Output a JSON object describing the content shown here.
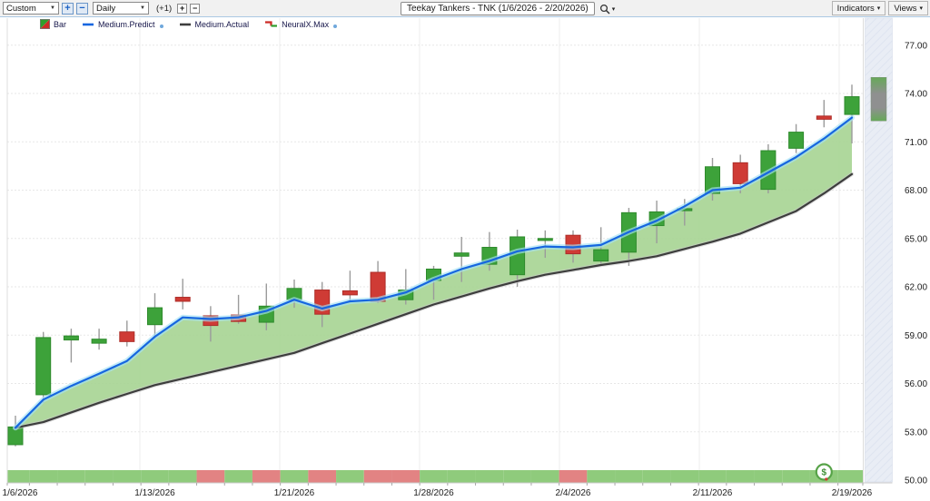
{
  "toolbar": {
    "layout_select": "Custom",
    "period_select": "Daily",
    "zoom_in_label": "+",
    "zoom_out_label": "−",
    "bar_offset_label": "(+1)",
    "step_plus_label": "+",
    "step_minus_label": "−",
    "chart_title": "Teekay Tankers - TNK (1/6/2026 - 2/20/2026)",
    "indicators_button": "Indicators",
    "views_button": "Views",
    "dropdown_caret": "▼",
    "button_caret": "▾"
  },
  "legend": {
    "items": [
      {
        "label": "Bar",
        "icon": "candlestick-legend-icon"
      },
      {
        "label": "Medium.Predict",
        "icon": "blue-line-icon",
        "has_dot": true
      },
      {
        "label": "Medium.Actual",
        "icon": "dark-line-icon",
        "has_dot": false
      },
      {
        "label": "NeuralX.Max",
        "icon": "red-green-step-icon",
        "has_dot": true
      }
    ]
  },
  "chart_data": {
    "type": "candlestick",
    "title": "Teekay Tankers - TNK",
    "date_range": "1/6/2026 - 2/20/2026",
    "y_axis": {
      "min": 50,
      "max": 77.5,
      "ticks": [
        50,
        53,
        56,
        59,
        62,
        65,
        68,
        71,
        74,
        77
      ],
      "tick_labels": [
        "50.00",
        "53.00",
        "56.00",
        "59.00",
        "62.00",
        "65.00",
        "68.00",
        "71.00",
        "74.00",
        "77.00"
      ]
    },
    "x_axis": {
      "tick_labels": [
        "1/6/2026",
        "1/13/2026",
        "1/21/2026",
        "1/28/2026",
        "2/4/2026",
        "2/11/2026",
        "2/19/2026"
      ],
      "tick_candle_indices": [
        0,
        5,
        10,
        15,
        20,
        25,
        30
      ]
    },
    "dates": [
      "1/6/2026",
      "1/7/2026",
      "1/8/2026",
      "1/9/2026",
      "1/12/2026",
      "1/13/2026",
      "1/14/2026",
      "1/15/2026",
      "1/16/2026",
      "1/20/2026",
      "1/21/2026",
      "1/22/2026",
      "1/23/2026",
      "1/26/2026",
      "1/27/2026",
      "1/28/2026",
      "1/29/2026",
      "1/30/2026",
      "2/2/2026",
      "2/3/2026",
      "2/4/2026",
      "2/5/2026",
      "2/6/2026",
      "2/9/2026",
      "2/10/2026",
      "2/11/2026",
      "2/12/2026",
      "2/13/2026",
      "2/17/2026",
      "2/18/2026",
      "2/19/2026"
    ],
    "candles": [
      {
        "o": 52.2,
        "h": 54.0,
        "l": 52.1,
        "c": 53.3
      },
      {
        "o": 55.3,
        "h": 59.2,
        "l": 54.8,
        "c": 58.85
      },
      {
        "o": 58.7,
        "h": 59.4,
        "l": 57.3,
        "c": 58.95
      },
      {
        "o": 58.5,
        "h": 59.4,
        "l": 58.1,
        "c": 58.75
      },
      {
        "o": 59.2,
        "h": 59.9,
        "l": 58.3,
        "c": 58.6
      },
      {
        "o": 59.65,
        "h": 61.6,
        "l": 58.8,
        "c": 60.7
      },
      {
        "o": 61.35,
        "h": 62.5,
        "l": 60.6,
        "c": 61.1
      },
      {
        "o": 60.2,
        "h": 60.8,
        "l": 58.6,
        "c": 59.6
      },
      {
        "o": 60.25,
        "h": 61.5,
        "l": 59.7,
        "c": 59.85
      },
      {
        "o": 59.8,
        "h": 62.2,
        "l": 59.3,
        "c": 60.8
      },
      {
        "o": 61.2,
        "h": 62.45,
        "l": 60.7,
        "c": 61.9
      },
      {
        "o": 61.8,
        "h": 62.3,
        "l": 59.5,
        "c": 60.3
      },
      {
        "o": 61.75,
        "h": 63.0,
        "l": 61.1,
        "c": 61.5
      },
      {
        "o": 62.9,
        "h": 63.6,
        "l": 61.0,
        "c": 61.1
      },
      {
        "o": 61.2,
        "h": 63.1,
        "l": 60.9,
        "c": 61.8
      },
      {
        "o": 62.4,
        "h": 63.3,
        "l": 61.2,
        "c": 63.1
      },
      {
        "o": 63.9,
        "h": 65.1,
        "l": 62.3,
        "c": 64.1
      },
      {
        "o": 63.4,
        "h": 65.4,
        "l": 63.0,
        "c": 64.45
      },
      {
        "o": 62.75,
        "h": 65.55,
        "l": 62.0,
        "c": 65.1
      },
      {
        "o": 64.9,
        "h": 65.5,
        "l": 63.8,
        "c": 65.0
      },
      {
        "o": 65.2,
        "h": 65.5,
        "l": 63.5,
        "c": 64.05
      },
      {
        "o": 63.6,
        "h": 65.7,
        "l": 63.4,
        "c": 64.3
      },
      {
        "o": 64.15,
        "h": 66.9,
        "l": 63.3,
        "c": 66.6
      },
      {
        "o": 65.8,
        "h": 67.35,
        "l": 64.7,
        "c": 66.65
      },
      {
        "o": 66.8,
        "h": 67.45,
        "l": 65.8,
        "c": 66.85
      },
      {
        "o": 67.8,
        "h": 70.0,
        "l": 67.35,
        "c": 69.45
      },
      {
        "o": 69.7,
        "h": 70.2,
        "l": 67.8,
        "c": 68.4
      },
      {
        "o": 68.05,
        "h": 70.85,
        "l": 67.8,
        "c": 70.45
      },
      {
        "o": 70.6,
        "h": 72.1,
        "l": 70.3,
        "c": 71.6
      },
      {
        "o": 72.6,
        "h": 73.6,
        "l": 71.9,
        "c": 72.4
      },
      {
        "o": 72.7,
        "h": 74.55,
        "l": 70.9,
        "c": 73.8
      }
    ],
    "series": [
      {
        "name": "Medium.Predict",
        "values": [
          53.25,
          55.0,
          55.85,
          56.6,
          57.4,
          58.9,
          60.1,
          60.0,
          60.1,
          60.5,
          61.2,
          60.65,
          61.1,
          61.2,
          61.65,
          62.45,
          63.1,
          63.6,
          64.2,
          64.5,
          64.45,
          64.6,
          65.4,
          66.1,
          67.0,
          68.0,
          68.15,
          69.1,
          70.05,
          71.2,
          72.5
        ]
      },
      {
        "name": "Medium.Actual",
        "values": [
          53.25,
          53.6,
          54.2,
          54.8,
          55.35,
          55.9,
          56.3,
          56.7,
          57.1,
          57.5,
          57.9,
          58.5,
          59.1,
          59.7,
          60.3,
          60.9,
          61.4,
          61.9,
          62.35,
          62.75,
          63.05,
          63.35,
          63.6,
          63.9,
          64.35,
          64.8,
          65.3,
          66.0,
          66.7,
          67.8,
          69.0
        ]
      }
    ],
    "neuralx_ribbon": {
      "name": "NeuralX.Max",
      "states": [
        "up",
        "up",
        "up",
        "up",
        "up",
        "up",
        "up",
        "down",
        "up",
        "down",
        "up",
        "down",
        "up",
        "down",
        "down",
        "up",
        "up",
        "up",
        "up",
        "up",
        "down",
        "up",
        "up",
        "up",
        "up",
        "up",
        "up",
        "up",
        "up",
        "up",
        "up"
      ]
    },
    "forecast_bar": {
      "date": "2/20/2026",
      "high": 75.0,
      "low": 72.3
    },
    "dollar_marker": {
      "symbol": "$",
      "candle_index": 29
    },
    "colors": {
      "up": "#3da23a",
      "up_border": "#2e8a2c",
      "down": "#cf3b35",
      "down_border": "#ad2d28",
      "wick": "#9b9b9b",
      "predict": "#1666e0",
      "predict_glow": "#a5e2f5",
      "actual": "#3d3d3d",
      "actual_glow": "#c9c9c9",
      "band_fill": "#a6d492",
      "ribbon_up": "#8fcb7c",
      "ribbon_down": "#e28383",
      "forecast_green": "#66a958",
      "forecast_gray": "#8f9090",
      "forecast_column": "#e9edf5",
      "grid": "#e7e7e7",
      "axis_text": "#202020",
      "dollar_ring": "#57a348"
    }
  }
}
